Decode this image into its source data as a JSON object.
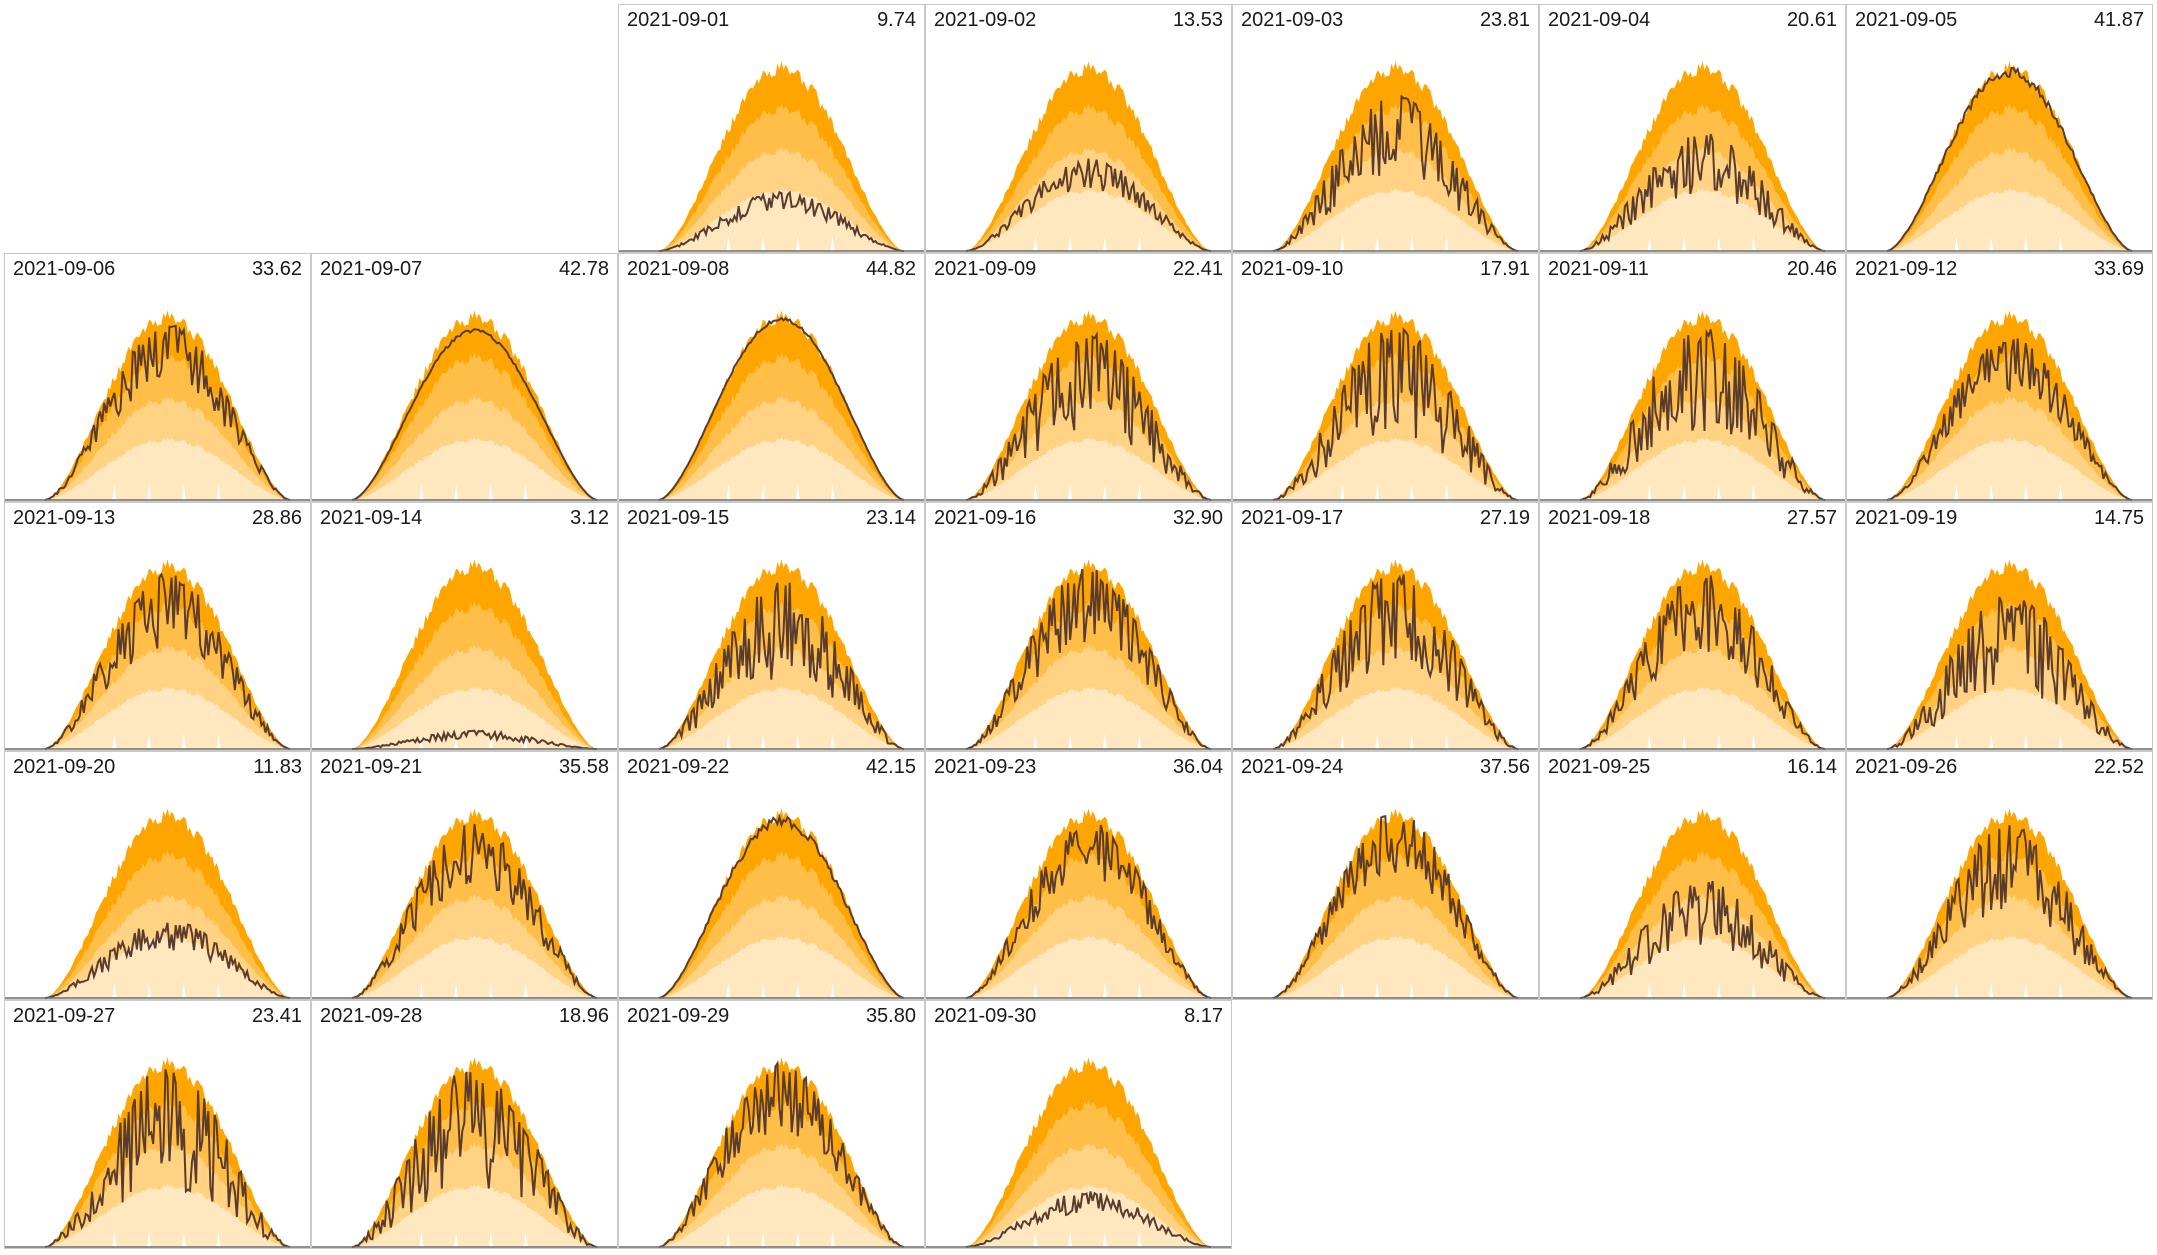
{
  "chart_data": {
    "type": "area",
    "layout": "calendar small multiples, 7 columns (Monday-first), one panel per day",
    "month": "2021-09",
    "series_styles": {
      "band_colors": [
        "#FFA500",
        "#FFBE47",
        "#FFD383",
        "#FFE7BF",
        "#FFFFFF"
      ],
      "actual_line_color": "#5a3c2e",
      "low_marker_color": "#e8453c"
    },
    "panels": [
      {
        "date": "2021-09-01",
        "value": "9.74",
        "peak": 0.32,
        "var": 0.35,
        "seed": 1
      },
      {
        "date": "2021-09-02",
        "value": "13.53",
        "peak": 0.5,
        "var": 0.35,
        "seed": 2
      },
      {
        "date": "2021-09-03",
        "value": "23.81",
        "peak": 0.85,
        "var": 0.55,
        "seed": 3
      },
      {
        "date": "2021-09-04",
        "value": "20.61",
        "peak": 0.65,
        "var": 0.55,
        "seed": 4
      },
      {
        "date": "2021-09-05",
        "value": "41.87",
        "peak": 0.97,
        "var": 0.06,
        "seed": 5
      },
      {
        "date": "2021-09-06",
        "value": "33.62",
        "peak": 0.95,
        "var": 0.35,
        "seed": 6
      },
      {
        "date": "2021-09-07",
        "value": "42.78",
        "peak": 0.9,
        "var": 0.02,
        "seed": 7
      },
      {
        "date": "2021-09-08",
        "value": "44.82",
        "peak": 0.96,
        "var": 0.02,
        "seed": 8
      },
      {
        "date": "2021-09-09",
        "value": "22.41",
        "peak": 0.92,
        "var": 0.6,
        "seed": 9
      },
      {
        "date": "2021-09-10",
        "value": "17.91",
        "peak": 0.95,
        "var": 0.65,
        "seed": 10
      },
      {
        "date": "2021-09-11",
        "value": "20.46",
        "peak": 0.95,
        "var": 0.65,
        "seed": 11
      },
      {
        "date": "2021-09-12",
        "value": "33.69",
        "peak": 0.88,
        "var": 0.35,
        "seed": 12
      },
      {
        "date": "2021-09-13",
        "value": "28.86",
        "peak": 0.95,
        "var": 0.45,
        "seed": 13
      },
      {
        "date": "2021-09-14",
        "value": "3.12",
        "peak": 0.1,
        "var": 0.5,
        "seed": 14
      },
      {
        "date": "2021-09-15",
        "value": "23.14",
        "peak": 0.92,
        "var": 0.6,
        "seed": 15
      },
      {
        "date": "2021-09-16",
        "value": "32.90",
        "peak": 0.98,
        "var": 0.45,
        "seed": 16
      },
      {
        "date": "2021-09-17",
        "value": "27.19",
        "peak": 0.96,
        "var": 0.55,
        "seed": 17
      },
      {
        "date": "2021-09-18",
        "value": "27.57",
        "peak": 0.95,
        "var": 0.5,
        "seed": 18
      },
      {
        "date": "2021-09-19",
        "value": "14.75",
        "peak": 0.85,
        "var": 0.65,
        "seed": 19
      },
      {
        "date": "2021-09-20",
        "value": "11.83",
        "peak": 0.42,
        "var": 0.4,
        "seed": 20
      },
      {
        "date": "2021-09-21",
        "value": "35.58",
        "peak": 0.95,
        "var": 0.4,
        "seed": 21
      },
      {
        "date": "2021-09-22",
        "value": "42.15",
        "peak": 0.96,
        "var": 0.06,
        "seed": 22
      },
      {
        "date": "2021-09-23",
        "value": "36.04",
        "peak": 0.95,
        "var": 0.35,
        "seed": 23
      },
      {
        "date": "2021-09-24",
        "value": "37.56",
        "peak": 1.0,
        "var": 0.35,
        "seed": 24
      },
      {
        "date": "2021-09-25",
        "value": "16.14",
        "peak": 0.65,
        "var": 0.6,
        "seed": 25
      },
      {
        "date": "2021-09-26",
        "value": "22.52",
        "peak": 0.95,
        "var": 0.55,
        "seed": 26
      },
      {
        "date": "2021-09-27",
        "value": "23.41",
        "peak": 1.0,
        "var": 0.7,
        "seed": 27
      },
      {
        "date": "2021-09-28",
        "value": "18.96",
        "peak": 1.0,
        "var": 0.7,
        "seed": 28
      },
      {
        "date": "2021-09-29",
        "value": "35.80",
        "peak": 1.0,
        "var": 0.4,
        "seed": 29
      },
      {
        "date": "2021-09-30",
        "value": "8.17",
        "peak": 0.3,
        "var": 0.4,
        "seed": 30
      }
    ]
  }
}
